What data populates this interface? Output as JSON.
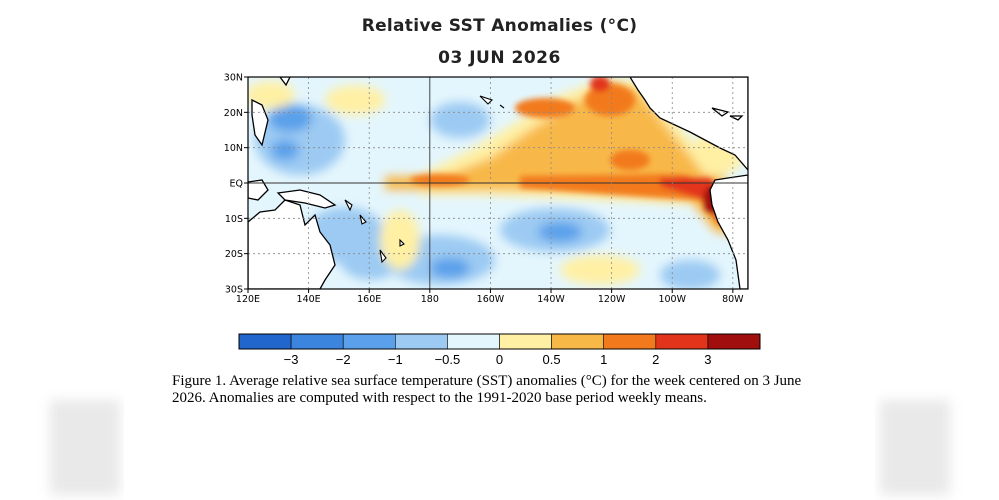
{
  "title": "Relative SST Anomalies (°C)",
  "subtitle": "03 JUN 2026",
  "map": {
    "region": "Tropical Pacific",
    "lat_labels": [
      "30N",
      "20N",
      "10N",
      "EQ",
      "10S",
      "20S",
      "30S"
    ],
    "lon_labels": [
      "120E",
      "140E",
      "160E",
      "180",
      "160W",
      "140W",
      "120W",
      "100W",
      "80W"
    ],
    "lat_range": [
      -30,
      30
    ],
    "lon_range": [
      120,
      285
    ],
    "gridlines": "dotted",
    "colors": {
      "land": "#ffffff",
      "coastline": "#000000"
    }
  },
  "colorbar": {
    "tick_labels": [
      "−3",
      "−2",
      "−1",
      "−0.5",
      "0",
      "0.5",
      "1",
      "2",
      "3"
    ],
    "colors": [
      "#2166cc",
      "#3c85de",
      "#5aa0ea",
      "#9ccaf3",
      "#e4f6fd",
      "#fff0a4",
      "#f8b848",
      "#f27a1c",
      "#e2341b",
      "#a00e0e"
    ]
  },
  "caption": "Figure 1. Average relative sea surface temperature (SST) anomalies (°C) for the week centered on 3 June 2026.  Anomalies are computed with respect to the 1991-2020 base period weekly means."
}
